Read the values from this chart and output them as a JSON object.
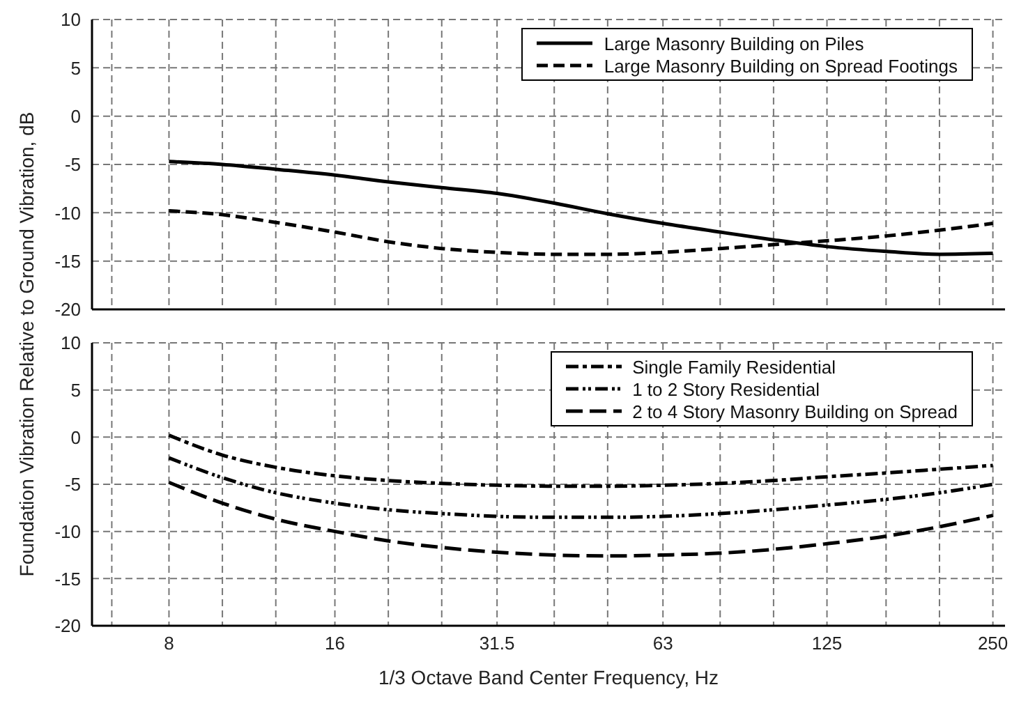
{
  "chart_data": [
    {
      "type": "line",
      "ylabel": "Foundation Vibration Relative to Ground Vibration, dB",
      "x": [
        8,
        10,
        12.5,
        16,
        20,
        25,
        31.5,
        40,
        50,
        63,
        80,
        100,
        125,
        160,
        200,
        250
      ],
      "series": [
        {
          "name": "Large Masonry Building on Piles",
          "color": "#000000",
          "line_style": "solid",
          "values": [
            -4.7,
            -5,
            -5.5,
            -6.1,
            -6.8,
            -7.4,
            -8,
            -9,
            -10.1,
            -11.1,
            -12,
            -12.8,
            -13.5,
            -14,
            -14.3,
            -14.2
          ]
        },
        {
          "name": "Large Masonry Building on Spread Footings",
          "color": "#000000",
          "line_style": "dashed",
          "values": [
            -9.8,
            -10.2,
            -11,
            -12,
            -13,
            -13.7,
            -14.1,
            -14.3,
            -14.3,
            -14.1,
            -13.7,
            -13.3,
            -12.9,
            -12.4,
            -11.8,
            -11.1
          ]
        }
      ],
      "log": "x",
      "xlim": [
        5.8,
        263
      ],
      "xticks": [
        {
          "value": 6.3,
          "label": null
        },
        8,
        {
          "value": 10,
          "label": null
        },
        {
          "value": 12.5,
          "label": null
        },
        16,
        {
          "value": 20,
          "label": null
        },
        {
          "value": 25,
          "label": null
        },
        31.5,
        {
          "value": 40,
          "label": null
        },
        {
          "value": 50,
          "label": null
        },
        63,
        {
          "value": 80,
          "label": null
        },
        {
          "value": 100,
          "label": null
        },
        125,
        {
          "value": 160,
          "label": null
        },
        {
          "value": 200,
          "label": null
        },
        250
      ],
      "ylim": [
        -20,
        10
      ],
      "yticks": [
        -20,
        -15,
        -10,
        -5,
        0,
        5,
        10
      ],
      "grid": true,
      "legend": "top right",
      "tick_labels": "y"
    },
    {
      "type": "line",
      "xlabel": "1/3 Octave Band Center Frequency, Hz",
      "x": [
        8,
        10,
        12.5,
        16,
        20,
        25,
        31.5,
        40,
        50,
        63,
        80,
        100,
        125,
        160,
        200,
        250
      ],
      "series": [
        {
          "name": "Single Family Residential",
          "color": "#000000",
          "line_style": "dashdot",
          "values": [
            0.2,
            -1.9,
            -3.2,
            -4.1,
            -4.6,
            -4.9,
            -5.1,
            -5.2,
            -5.2,
            -5.1,
            -4.9,
            -4.6,
            -4.2,
            -3.8,
            -3.4,
            -3
          ]
        },
        {
          "name": "1 to 2 Story Residential",
          "color": "#000000",
          "line_style": "dashdotdot",
          "values": [
            -2.2,
            -4.3,
            -5.9,
            -7,
            -7.7,
            -8.1,
            -8.4,
            -8.5,
            -8.5,
            -8.4,
            -8.1,
            -7.7,
            -7.2,
            -6.6,
            -5.9,
            -5
          ]
        },
        {
          "name": "2 to 4 Story Masonry Building on Spread",
          "color": "#000000",
          "line_style": "longdash",
          "values": [
            -4.8,
            -7,
            -8.7,
            -10,
            -11,
            -11.7,
            -12.2,
            -12.5,
            -12.6,
            -12.5,
            -12.3,
            -11.9,
            -11.3,
            -10.5,
            -9.5,
            -8.3
          ]
        }
      ],
      "log": "x",
      "xlim": [
        5.8,
        263
      ],
      "xticks": [
        {
          "value": 6.3,
          "label": null
        },
        8,
        {
          "value": 10,
          "label": null
        },
        {
          "value": 12.5,
          "label": null
        },
        16,
        {
          "value": 20,
          "label": null
        },
        {
          "value": 25,
          "label": null
        },
        31.5,
        {
          "value": 40,
          "label": null
        },
        {
          "value": 50,
          "label": null
        },
        63,
        {
          "value": 80,
          "label": null
        },
        {
          "value": 100,
          "label": null
        },
        125,
        {
          "value": 160,
          "label": null
        },
        {
          "value": 200,
          "label": null
        },
        250
      ],
      "ylim": [
        -20,
        10
      ],
      "yticks": [
        -20,
        -15,
        -10,
        -5,
        0,
        5,
        10
      ],
      "grid": true,
      "legend": "top right"
    }
  ]
}
